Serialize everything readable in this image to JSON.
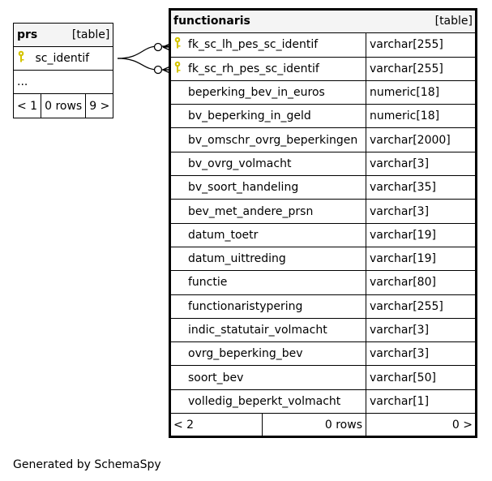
{
  "prs": {
    "name": "prs",
    "type_label": "[table]",
    "columns": [
      {
        "name": "sc_identif",
        "key": true
      }
    ],
    "ellipsis": "...",
    "footer": {
      "parents": "< 1",
      "rows": "0 rows",
      "children": "9 >"
    }
  },
  "functionaris": {
    "name": "functionaris",
    "type_label": "[table]",
    "columns": [
      {
        "name": "fk_sc_lh_pes_sc_identif",
        "type": "varchar[255]",
        "key": true
      },
      {
        "name": "fk_sc_rh_pes_sc_identif",
        "type": "varchar[255]",
        "key": true
      },
      {
        "name": "beperking_bev_in_euros",
        "type": "numeric[18]"
      },
      {
        "name": "bv_beperking_in_geld",
        "type": "numeric[18]"
      },
      {
        "name": "bv_omschr_ovrg_beperkingen",
        "type": "varchar[2000]"
      },
      {
        "name": "bv_ovrg_volmacht",
        "type": "varchar[3]"
      },
      {
        "name": "bv_soort_handeling",
        "type": "varchar[35]"
      },
      {
        "name": "bev_met_andere_prsn",
        "type": "varchar[3]"
      },
      {
        "name": "datum_toetr",
        "type": "varchar[19]"
      },
      {
        "name": "datum_uittreding",
        "type": "varchar[19]"
      },
      {
        "name": "functie",
        "type": "varchar[80]"
      },
      {
        "name": "functionaristypering",
        "type": "varchar[255]"
      },
      {
        "name": "indic_statutair_volmacht",
        "type": "varchar[3]"
      },
      {
        "name": "ovrg_beperking_bev",
        "type": "varchar[3]"
      },
      {
        "name": "soort_bev",
        "type": "varchar[50]"
      },
      {
        "name": "volledig_beperkt_volmacht",
        "type": "varchar[1]"
      }
    ],
    "footer": {
      "parents": "< 2",
      "rows": "0 rows",
      "children": "0 >"
    }
  },
  "footer_text": "Generated by SchemaSpy",
  "colors": {
    "key_icon": "#d4c400",
    "header_bg": "#f4f4f4",
    "border": "#000000"
  }
}
